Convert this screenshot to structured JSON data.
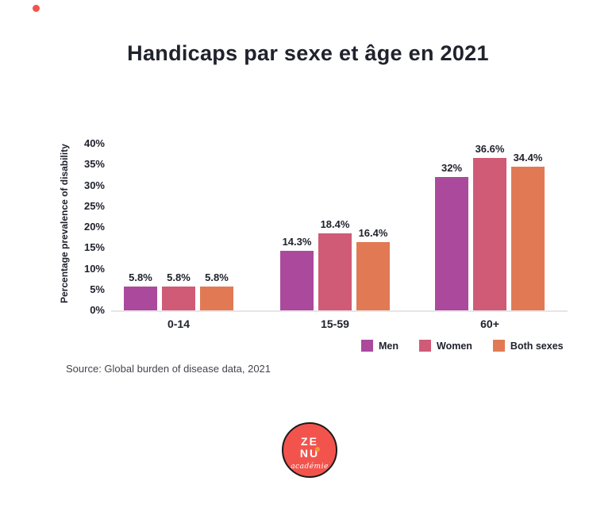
{
  "title": "Handicaps par sexe et âge en 2021",
  "source_note": "Source: Global burden of disease data, 2021",
  "colors": {
    "men": "#ab4a9c",
    "women": "#d05b76",
    "both_sexes": "#e17a54",
    "dark_text": "#20222d",
    "source_text": "#44454e",
    "axis_line": "#e6e6ea",
    "logo_red": "#f2544d",
    "logo_ring": "#1a1a1a",
    "logo_accent": "#ee9a3a",
    "marker_dot": "#f2544d"
  },
  "chart_data": {
    "type": "bar",
    "title": "Handicaps par sexe et âge en 2021",
    "categories": [
      "0-14",
      "15-59",
      "60+"
    ],
    "series": [
      {
        "name": "Men",
        "color": "#ab4a9c",
        "values": [
          5.8,
          14.3,
          32
        ],
        "labels": [
          "5.8%",
          "14.3%",
          "32%"
        ]
      },
      {
        "name": "Women",
        "color": "#d05b76",
        "values": [
          5.8,
          18.4,
          36.6
        ],
        "labels": [
          "5.8%",
          "18.4%",
          "36.6%"
        ]
      },
      {
        "name": "Both sexes",
        "color": "#e17a54",
        "values": [
          5.8,
          16.4,
          34.4
        ],
        "labels": [
          "5.8%",
          "16.4%",
          "34.4%"
        ]
      }
    ],
    "xlabel": "",
    "ylabel": "Percentage prevalence of disability",
    "yticks": [
      "40%",
      "35%",
      "30%",
      "25%",
      "20%",
      "15%",
      "10%",
      "5%",
      "0%"
    ],
    "ylim": [
      0,
      40
    ],
    "grid": false,
    "legend_position": "bottom-right"
  },
  "logo": {
    "line1": "ZE",
    "line2": "NU",
    "subtitle": "académie"
  }
}
